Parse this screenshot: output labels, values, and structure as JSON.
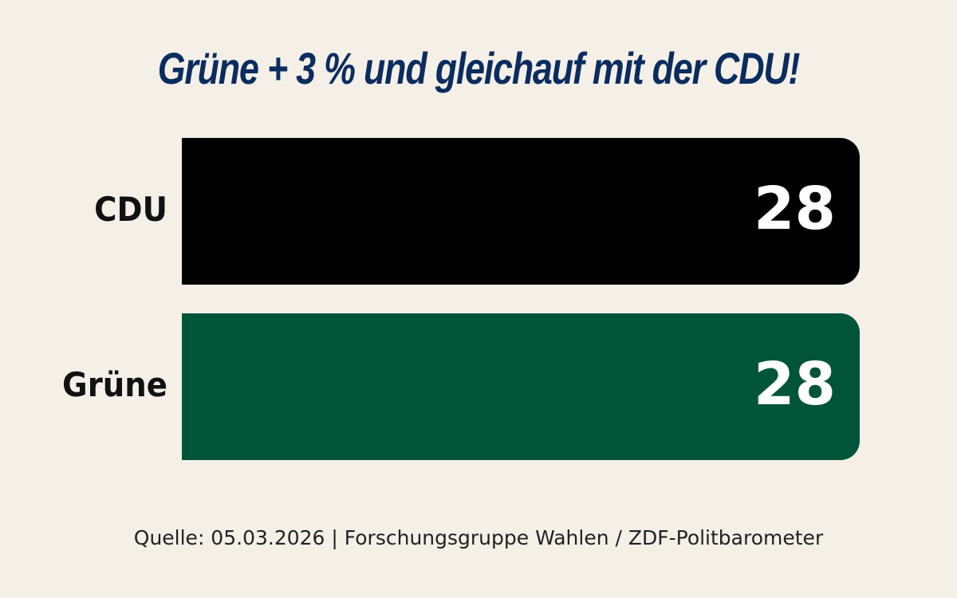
{
  "chart_data": {
    "type": "bar",
    "orientation": "horizontal",
    "title": "Grüne + 3 % und gleichauf mit der CDU!",
    "categories": [
      "CDU",
      "Grüne"
    ],
    "values": [
      28,
      28
    ],
    "colors": [
      "#000000",
      "#005538"
    ],
    "source": "Quelle: 05.03.2026 | Forschungsgruppe Wahlen / ZDF-Politbarometer",
    "title_color": "#0b2c5f",
    "value_label_color": "#ffffff",
    "grid": false,
    "legend": "none"
  }
}
